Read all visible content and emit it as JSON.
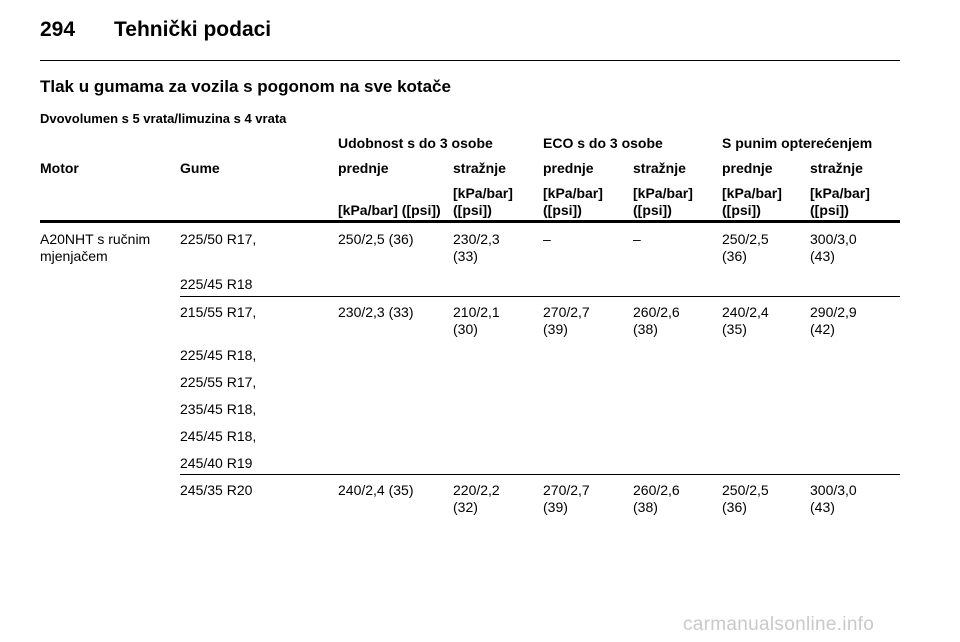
{
  "header": {
    "page_number": "294",
    "chapter_title": "Tehnički podaci"
  },
  "section_title": "Tlak u gumama za vozila s pogonom na sve kotače",
  "subsection_title": "Dvovolumen s 5 vrata/limuzina s 4 vrata",
  "table": {
    "group_headers": [
      "Udobnost s do 3 osobe",
      "ECO s do 3 osobe",
      "S punim opterećenjem"
    ],
    "col_motor": "Motor",
    "col_gume": "Gume",
    "sub_headers": [
      "prednje",
      "stražnje",
      "prednje",
      "stražnje",
      "prednje",
      "stražnje"
    ],
    "unit_single": "[kPa/bar] ([psi])",
    "unit_line1": "[kPa/bar]",
    "unit_line2": "([psi])",
    "motor_line1": "A20NHT s ručnim",
    "motor_line2": "mjenjačem",
    "groups": [
      {
        "tyres": [
          "225/50 R17,",
          "225/45 R18"
        ],
        "values": [
          [
            "250/2,5 (36)"
          ],
          [
            "230/2,3",
            "(33)"
          ],
          [
            "–"
          ],
          [
            "–"
          ],
          [
            "250/2,5",
            "(36)"
          ],
          [
            "300/3,0",
            "(43)"
          ]
        ]
      },
      {
        "tyres": [
          "215/55 R17,",
          "225/45 R18,",
          "225/55 R17,",
          "235/45 R18,",
          "245/45 R18,",
          "245/40 R19"
        ],
        "values": [
          [
            "230/2,3 (33)"
          ],
          [
            "210/2,1",
            "(30)"
          ],
          [
            "270/2,7",
            "(39)"
          ],
          [
            "260/2,6",
            "(38)"
          ],
          [
            "240/2,4",
            "(35)"
          ],
          [
            "290/2,9",
            "(42)"
          ]
        ]
      },
      {
        "tyres": [
          "245/35 R20"
        ],
        "values": [
          [
            "240/2,4 (35)"
          ],
          [
            "220/2,2",
            "(32)"
          ],
          [
            "270/2,7",
            "(39)"
          ],
          [
            "260/2,6",
            "(38)"
          ],
          [
            "250/2,5",
            "(36)"
          ],
          [
            "300/3,0",
            "(43)"
          ]
        ]
      }
    ]
  },
  "watermark": "carmanualsonline.info"
}
